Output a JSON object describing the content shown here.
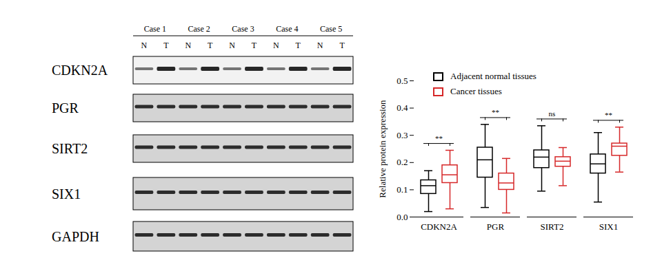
{
  "blot": {
    "cases": [
      "Case 1",
      "Case 2",
      "Case 3",
      "Case 4",
      "Case 5"
    ],
    "lanes": [
      "N",
      "T"
    ],
    "proteins": [
      "CDKN2A",
      "PGR",
      "SIRT2",
      "SIX1",
      "GAPDH"
    ]
  },
  "chart_data": {
    "type": "boxplot",
    "ylabel": "Relative protein expression",
    "categories": [
      "CDKN2A",
      "PGR",
      "SIRT2",
      "SIX1"
    ],
    "series": [
      {
        "name": "Adjacent normal tissues",
        "color": "#000000",
        "min": [
          0.02,
          0.035,
          0.095,
          0.055
        ],
        "q1": [
          0.085,
          0.145,
          0.18,
          0.16
        ],
        "median": [
          0.115,
          0.21,
          0.22,
          0.195
        ],
        "q3": [
          0.135,
          0.255,
          0.245,
          0.23
        ],
        "max": [
          0.17,
          0.34,
          0.335,
          0.31
        ]
      },
      {
        "name": "Cancer tissues",
        "color": "#d62728",
        "min": [
          0.03,
          0.015,
          0.115,
          0.165
        ],
        "q1": [
          0.125,
          0.1,
          0.185,
          0.225
        ],
        "median": [
          0.155,
          0.125,
          0.205,
          0.26
        ],
        "q3": [
          0.19,
          0.16,
          0.22,
          0.27
        ],
        "max": [
          0.245,
          0.215,
          0.255,
          0.33
        ]
      }
    ],
    "significance": [
      "**",
      "**",
      "ns",
      "**"
    ],
    "ylim": [
      0,
      0.5
    ],
    "yticks": [
      {
        "value": 0,
        "label": "0.0"
      },
      0.1,
      0.2,
      0.3,
      0.4,
      0.5
    ],
    "grid": false,
    "legend": "top-left"
  }
}
